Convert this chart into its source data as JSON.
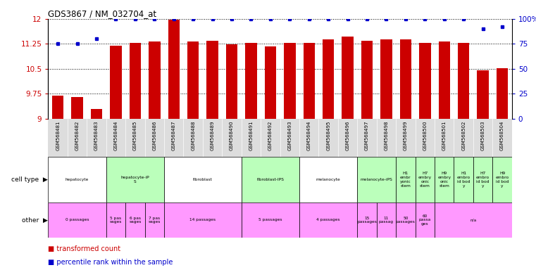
{
  "title": "GDS3867 / NM_032704_at",
  "samples": [
    "GSM568481",
    "GSM568482",
    "GSM568483",
    "GSM568484",
    "GSM568485",
    "GSM568486",
    "GSM568487",
    "GSM568488",
    "GSM568489",
    "GSM568490",
    "GSM568491",
    "GSM568492",
    "GSM568493",
    "GSM568494",
    "GSM568495",
    "GSM568496",
    "GSM568497",
    "GSM568498",
    "GSM568499",
    "GSM568500",
    "GSM568501",
    "GSM568502",
    "GSM568503",
    "GSM568504"
  ],
  "bar_values": [
    9.7,
    9.65,
    9.3,
    11.2,
    11.27,
    11.32,
    11.97,
    11.32,
    11.34,
    11.23,
    11.27,
    11.17,
    11.28,
    11.27,
    11.38,
    11.47,
    11.35,
    11.38,
    11.38,
    11.27,
    11.32,
    11.27,
    10.45,
    10.52
  ],
  "percentile_values": [
    75,
    75,
    80,
    100,
    100,
    100,
    100,
    100,
    100,
    100,
    100,
    100,
    100,
    100,
    100,
    100,
    100,
    100,
    100,
    100,
    100,
    100,
    90,
    92
  ],
  "bar_color": "#cc0000",
  "dot_color": "#0000cc",
  "ylim_left": [
    9,
    12
  ],
  "yticks_left": [
    9,
    9.75,
    10.5,
    11.25,
    12
  ],
  "ytick_labels_left": [
    "9",
    "9.75",
    "10.5",
    "11.25",
    "12"
  ],
  "yticks_right": [
    0,
    25,
    50,
    75,
    100
  ],
  "ytick_labels_right": [
    "0",
    "25",
    "50",
    "75",
    "100%"
  ],
  "cell_type_groups": [
    {
      "label": "hepatocyte",
      "start": 0,
      "end": 2,
      "color": "#ffffff"
    },
    {
      "label": "hepatocyte-iP\nS",
      "start": 3,
      "end": 5,
      "color": "#bbffbb"
    },
    {
      "label": "fibroblast",
      "start": 6,
      "end": 9,
      "color": "#ffffff"
    },
    {
      "label": "fibroblast-IPS",
      "start": 10,
      "end": 12,
      "color": "#bbffbb"
    },
    {
      "label": "melanocyte",
      "start": 13,
      "end": 15,
      "color": "#ffffff"
    },
    {
      "label": "melanocyte-iPS",
      "start": 16,
      "end": 17,
      "color": "#bbffbb"
    },
    {
      "label": "H1\nembr\nyonic\nstem",
      "start": 18,
      "end": 18,
      "color": "#bbffbb"
    },
    {
      "label": "H7\nembry\nonic\nstem",
      "start": 19,
      "end": 19,
      "color": "#bbffbb"
    },
    {
      "label": "H9\nembry\nonic\nstem",
      "start": 20,
      "end": 20,
      "color": "#bbffbb"
    },
    {
      "label": "H1\nembro\nid bod\ny",
      "start": 21,
      "end": 21,
      "color": "#bbffbb"
    },
    {
      "label": "H7\nembro\nid bod\ny",
      "start": 22,
      "end": 22,
      "color": "#bbffbb"
    },
    {
      "label": "H9\nembro\nid bod\ny",
      "start": 23,
      "end": 23,
      "color": "#bbffbb"
    }
  ],
  "other_groups": [
    {
      "label": "0 passages",
      "start": 0,
      "end": 2,
      "color": "#ff99ff"
    },
    {
      "label": "5 pas\nsages",
      "start": 3,
      "end": 3,
      "color": "#ff99ff"
    },
    {
      "label": "6 pas\nsages",
      "start": 4,
      "end": 4,
      "color": "#ff99ff"
    },
    {
      "label": "7 pas\nsages",
      "start": 5,
      "end": 5,
      "color": "#ff99ff"
    },
    {
      "label": "14 passages",
      "start": 6,
      "end": 9,
      "color": "#ff99ff"
    },
    {
      "label": "5 passages",
      "start": 10,
      "end": 12,
      "color": "#ff99ff"
    },
    {
      "label": "4 passages",
      "start": 13,
      "end": 15,
      "color": "#ff99ff"
    },
    {
      "label": "15\npassages",
      "start": 16,
      "end": 16,
      "color": "#ff99ff"
    },
    {
      "label": "11\npassag",
      "start": 17,
      "end": 17,
      "color": "#ff99ff"
    },
    {
      "label": "50\npassages",
      "start": 18,
      "end": 18,
      "color": "#ff99ff"
    },
    {
      "label": "60\npassa\nges",
      "start": 19,
      "end": 19,
      "color": "#ff99ff"
    },
    {
      "label": "n/a",
      "start": 20,
      "end": 23,
      "color": "#ff99ff"
    }
  ],
  "bg_color": "#ffffff",
  "sample_label_bg": "#dddddd"
}
